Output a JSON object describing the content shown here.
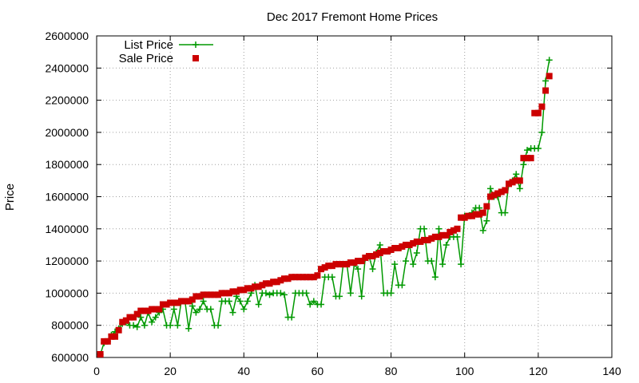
{
  "chart_data": {
    "type": "scatter",
    "title": "Dec 2017 Fremont Home Prices",
    "xlabel": "",
    "ylabel": "Price",
    "xlim": [
      0,
      140
    ],
    "ylim": [
      600000,
      2600000
    ],
    "xticks": [
      0,
      20,
      40,
      60,
      80,
      100,
      120,
      140
    ],
    "yticks": [
      600000,
      800000,
      1000000,
      1200000,
      1400000,
      1600000,
      1800000,
      2000000,
      2200000,
      2400000,
      2600000
    ],
    "grid": true,
    "legend": "top-left",
    "series": [
      {
        "name": "List Price",
        "style": "linespoints",
        "marker": "plus",
        "color": "#009900",
        "x": [
          1,
          2,
          3,
          4,
          5,
          6,
          7,
          8,
          9,
          10,
          11,
          12,
          13,
          14,
          15,
          16,
          17,
          18,
          19,
          20,
          21,
          22,
          23,
          24,
          25,
          26,
          27,
          28,
          29,
          30,
          31,
          32,
          33,
          34,
          35,
          36,
          37,
          38,
          39,
          40,
          41,
          42,
          43,
          44,
          45,
          46,
          47,
          48,
          49,
          50,
          51,
          52,
          53,
          54,
          55,
          56,
          57,
          58,
          59,
          60,
          61,
          62,
          63,
          64,
          65,
          66,
          67,
          68,
          69,
          70,
          71,
          72,
          73,
          74,
          75,
          76,
          77,
          78,
          79,
          80,
          81,
          82,
          83,
          84,
          85,
          86,
          87,
          88,
          89,
          90,
          91,
          92,
          93,
          94,
          95,
          96,
          97,
          98,
          99,
          100,
          101,
          102,
          103,
          104,
          105,
          106,
          107,
          108,
          109,
          110,
          111,
          112,
          113,
          114,
          115,
          116,
          117,
          118,
          119,
          120,
          121,
          122,
          123
        ],
        "y": [
          620000,
          690000,
          700000,
          740000,
          760000,
          780000,
          810000,
          820000,
          800000,
          800000,
          790000,
          850000,
          800000,
          880000,
          820000,
          850000,
          880000,
          900000,
          800000,
          800000,
          900000,
          800000,
          950000,
          950000,
          780000,
          920000,
          880000,
          900000,
          950000,
          900000,
          900000,
          800000,
          800000,
          950000,
          950000,
          950000,
          880000,
          980000,
          950000,
          900000,
          950000,
          1000000,
          1050000,
          930000,
          1000000,
          1000000,
          990000,
          1000000,
          1000000,
          1000000,
          990000,
          850000,
          850000,
          1000000,
          1000000,
          1000000,
          1000000,
          930000,
          950000,
          930000,
          930000,
          1100000,
          1100000,
          1100000,
          980000,
          980000,
          1180000,
          1180000,
          1000000,
          1180000,
          1150000,
          980000,
          1220000,
          1230000,
          1150000,
          1250000,
          1300000,
          1000000,
          1000000,
          1000000,
          1180000,
          1050000,
          1050000,
          1200000,
          1300000,
          1180000,
          1250000,
          1400000,
          1400000,
          1200000,
          1200000,
          1100000,
          1400000,
          1180000,
          1300000,
          1350000,
          1350000,
          1350000,
          1180000,
          1480000,
          1480000,
          1500000,
          1530000,
          1530000,
          1390000,
          1450000,
          1650000,
          1600000,
          1600000,
          1500000,
          1500000,
          1680000,
          1700000,
          1740000,
          1650000,
          1800000,
          1890000,
          1900000,
          1900000,
          1900000,
          2000000,
          2320000,
          2450000
        ]
      },
      {
        "name": "Sale Price",
        "style": "points",
        "marker": "square",
        "color": "#cc0000",
        "x": [
          1,
          2,
          3,
          4,
          5,
          6,
          7,
          8,
          9,
          10,
          11,
          12,
          13,
          14,
          15,
          16,
          17,
          18,
          19,
          20,
          21,
          22,
          23,
          24,
          25,
          26,
          27,
          28,
          29,
          30,
          31,
          32,
          33,
          34,
          35,
          36,
          37,
          38,
          39,
          40,
          41,
          42,
          43,
          44,
          45,
          46,
          47,
          48,
          49,
          50,
          51,
          52,
          53,
          54,
          55,
          56,
          57,
          58,
          59,
          60,
          61,
          62,
          63,
          64,
          65,
          66,
          67,
          68,
          69,
          70,
          71,
          72,
          73,
          74,
          75,
          76,
          77,
          78,
          79,
          80,
          81,
          82,
          83,
          84,
          85,
          86,
          87,
          88,
          89,
          90,
          91,
          92,
          93,
          94,
          95,
          96,
          97,
          98,
          99,
          100,
          101,
          102,
          103,
          104,
          105,
          106,
          107,
          108,
          109,
          110,
          111,
          112,
          113,
          114,
          115,
          116,
          117,
          118,
          119,
          120,
          121,
          122,
          123
        ],
        "y": [
          620000,
          700000,
          700000,
          730000,
          730000,
          770000,
          820000,
          830000,
          850000,
          850000,
          870000,
          890000,
          890000,
          890000,
          900000,
          900000,
          900000,
          930000,
          930000,
          940000,
          940000,
          940000,
          950000,
          950000,
          950000,
          960000,
          980000,
          980000,
          990000,
          990000,
          990000,
          990000,
          990000,
          1000000,
          1000000,
          1000000,
          1010000,
          1010000,
          1020000,
          1020000,
          1030000,
          1030000,
          1040000,
          1040000,
          1050000,
          1060000,
          1060000,
          1070000,
          1070000,
          1080000,
          1090000,
          1090000,
          1100000,
          1100000,
          1100000,
          1100000,
          1100000,
          1100000,
          1100000,
          1110000,
          1150000,
          1160000,
          1170000,
          1170000,
          1180000,
          1180000,
          1180000,
          1180000,
          1190000,
          1190000,
          1200000,
          1200000,
          1220000,
          1230000,
          1230000,
          1240000,
          1250000,
          1260000,
          1260000,
          1270000,
          1280000,
          1280000,
          1290000,
          1300000,
          1300000,
          1310000,
          1320000,
          1320000,
          1330000,
          1330000,
          1340000,
          1350000,
          1350000,
          1360000,
          1360000,
          1380000,
          1390000,
          1400000,
          1470000,
          1470000,
          1480000,
          1480000,
          1490000,
          1490000,
          1500000,
          1540000,
          1600000,
          1610000,
          1620000,
          1630000,
          1640000,
          1680000,
          1690000,
          1700000,
          1700000,
          1840000,
          1840000,
          1840000,
          2120000,
          2120000,
          2160000,
          2260000,
          2350000
        ]
      }
    ]
  }
}
